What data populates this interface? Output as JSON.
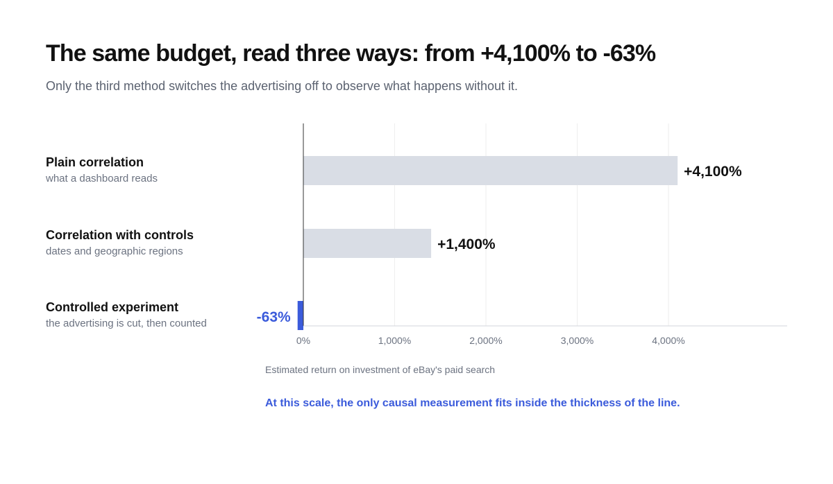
{
  "title": "The same budget, read three ways: from +4,100% to -63%",
  "subtitle": "Only the third method switches the advertising off to observe what happens without it.",
  "rows": [
    {
      "name": "Plain correlation",
      "description": "what a dashboard reads"
    },
    {
      "name": "Correlation with controls",
      "description": "dates and geographic regions"
    },
    {
      "name": "Controlled experiment",
      "description": "the advertising is cut, then counted"
    }
  ],
  "caption": "Estimated return on investment of eBay's paid search",
  "note": "At this scale, the only causal measurement fits inside the thickness of the line.",
  "colors": {
    "bar_neutral": "#d9dde5",
    "bar_highlight": "#3b5bdb",
    "note": "#3b5bdb",
    "axis": "#6b7280",
    "grid": "#eeeeee"
  },
  "chart_data": {
    "type": "bar",
    "orientation": "horizontal",
    "categories": [
      "Plain correlation",
      "Correlation with controls",
      "Controlled experiment"
    ],
    "values": [
      4100,
      1400,
      -63
    ],
    "value_labels": [
      "+4,100%",
      "+1,400%",
      "-63%"
    ],
    "highlight_index": 2,
    "xlim": [
      -63,
      5200
    ],
    "xticks": [
      0,
      1000,
      2000,
      3000,
      4000
    ],
    "xtick_labels": [
      "0%",
      "1,000%",
      "2,000%",
      "3,000%",
      "4,000%"
    ],
    "xlabel": "Estimated return on investment of eBay's paid search",
    "grid": true
  }
}
